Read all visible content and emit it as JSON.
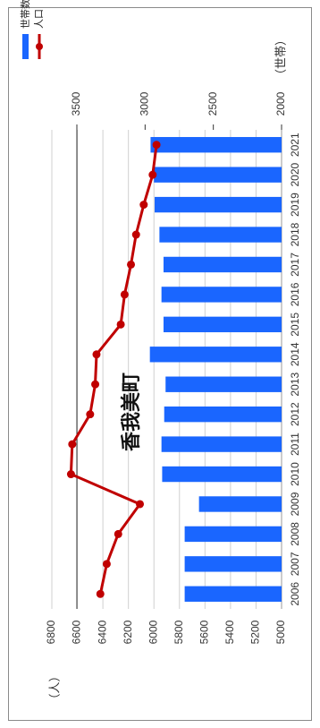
{
  "chart_data": {
    "type": "bar-line-combo",
    "title": "香我美町",
    "categories": [
      "2006",
      "2007",
      "2008",
      "2009",
      "2010",
      "2011",
      "2012",
      "2013",
      "2014",
      "2015",
      "2016",
      "2017",
      "2018",
      "2019",
      "2020",
      "2021"
    ],
    "series": [
      {
        "name": "世帯数",
        "type": "bar",
        "axis": "secondary",
        "color": "#1a66ff",
        "values": [
          2710,
          2710,
          2710,
          2605,
          2875,
          2880,
          2860,
          2850,
          2965,
          2865,
          2880,
          2865,
          2895,
          2930,
          2935,
          2960
        ]
      },
      {
        "name": "人口",
        "type": "line",
        "axis": "primary",
        "color": "#c00000",
        "values": [
          6420,
          6370,
          6280,
          6110,
          6650,
          6640,
          6500,
          6460,
          6450,
          6260,
          6230,
          6180,
          6140,
          6080,
          6010,
          5980
        ]
      }
    ],
    "primary_axis": {
      "unit": "（人）",
      "range": [
        5000,
        6800
      ],
      "ticks": [
        "5000",
        "5200",
        "5400",
        "5600",
        "5800",
        "6000",
        "6200",
        "6400",
        "6600",
        "6800"
      ]
    },
    "secondary_axis": {
      "unit": "（世帯）",
      "range": [
        2000,
        3500
      ],
      "ticks": [
        "2000",
        "2500",
        "3000",
        "3500"
      ]
    },
    "grid": true,
    "legend": {
      "position": "top-right",
      "items": [
        "世帯数",
        "人口"
      ]
    }
  }
}
